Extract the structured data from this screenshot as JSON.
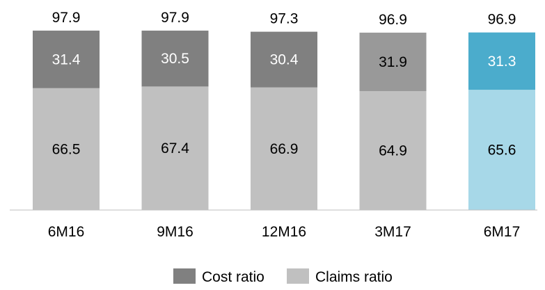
{
  "chart_data": {
    "type": "bar",
    "stacked": true,
    "categories": [
      "6M16",
      "9M16",
      "12M16",
      "3M17",
      "6M17"
    ],
    "series": [
      {
        "name": "Claims ratio",
        "values": [
          66.5,
          67.4,
          66.9,
          64.9,
          65.6
        ],
        "color": "#c0c0c0",
        "colors": [
          "#c0c0c0",
          "#c0c0c0",
          "#c0c0c0",
          "#c0c0c0",
          "#a7d8e8"
        ],
        "label_color": "#000000"
      },
      {
        "name": "Cost ratio",
        "values": [
          31.4,
          30.5,
          30.4,
          31.9,
          31.3
        ],
        "color": "#808080",
        "colors": [
          "#808080",
          "#808080",
          "#808080",
          "#999999",
          "#4baccc"
        ],
        "label_color": "#ffffff",
        "label_colors": [
          "#ffffff",
          "#ffffff",
          "#ffffff",
          "#000000",
          "#ffffff"
        ]
      }
    ],
    "totals": [
      97.9,
      97.9,
      97.3,
      96.9,
      96.9
    ],
    "ylim": [
      0,
      100
    ],
    "grid": false,
    "legend": {
      "position": "bottom",
      "entries": [
        {
          "label": "Cost ratio",
          "color": "#808080"
        },
        {
          "label": "Claims ratio",
          "color": "#c0c0c0"
        }
      ]
    }
  }
}
